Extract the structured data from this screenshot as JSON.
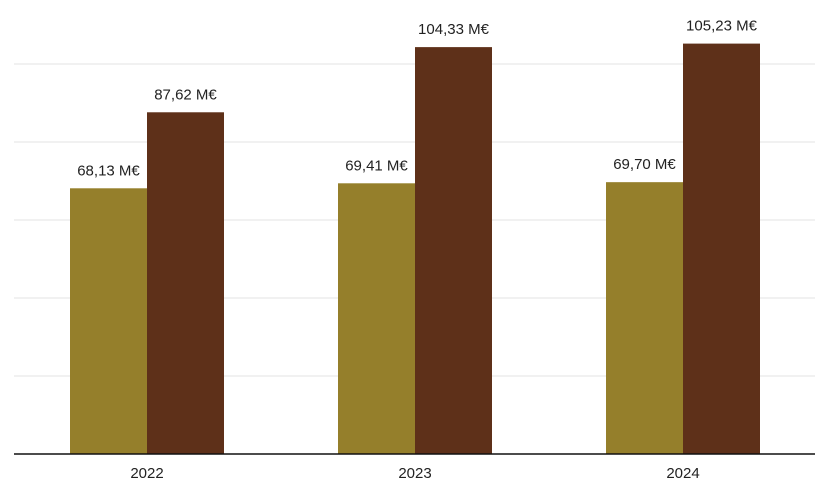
{
  "chart_data": {
    "type": "bar",
    "categories": [
      "2022",
      "2023",
      "2024"
    ],
    "series": [
      {
        "color": "#957F2B",
        "values": [
          68.13,
          69.41,
          69.7
        ],
        "labels": [
          "68,13 M€",
          "69,41 M€",
          "69,70 M€"
        ]
      },
      {
        "color": "#5E3019",
        "values": [
          87.62,
          104.33,
          105.23
        ],
        "labels": [
          "87,62 M€",
          "104,33 M€",
          "105,23 M€"
        ]
      }
    ],
    "ylim": [
      0,
      120
    ],
    "grid": true,
    "legend": "none",
    "y_axis_labels_shown": false
  }
}
